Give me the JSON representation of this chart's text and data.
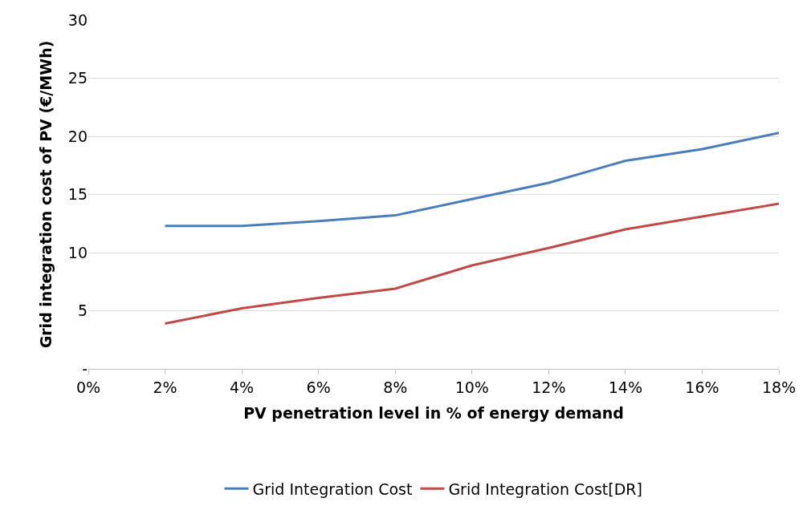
{
  "chart_data": {
    "type": "line",
    "xlabel": "PV penetration level in % of energy demand",
    "ylabel": "Grid integration cost of PV (€/MWh)",
    "x": [
      2,
      4,
      6,
      8,
      10,
      12,
      14,
      16,
      18
    ],
    "series": [
      {
        "name": "Grid Integration Cost",
        "color": "#4a7ebb",
        "values": [
          12.3,
          12.3,
          12.7,
          13.2,
          14.6,
          16.0,
          17.9,
          18.9,
          20.3
        ]
      },
      {
        "name": "Grid Integration Cost[DR]",
        "color": "#be4b48",
        "values": [
          3.9,
          5.2,
          6.1,
          6.9,
          8.9,
          10.4,
          12.0,
          13.1,
          14.2
        ]
      }
    ],
    "xlim": [
      0,
      18
    ],
    "xticks": [
      {
        "value": 0,
        "label": "0%"
      },
      {
        "value": 2,
        "label": "2%"
      },
      {
        "value": 4,
        "label": "4%"
      },
      {
        "value": 6,
        "label": "6%"
      },
      {
        "value": 8,
        "label": "8%"
      },
      {
        "value": 10,
        "label": "10%"
      },
      {
        "value": 12,
        "label": "12%"
      },
      {
        "value": 14,
        "label": "14%"
      },
      {
        "value": 16,
        "label": "16%"
      },
      {
        "value": 18,
        "label": "18%"
      }
    ],
    "ylim": [
      0,
      30
    ],
    "yticks": [
      {
        "value": 0,
        "label": "-"
      },
      5,
      10,
      15,
      20,
      25,
      30
    ],
    "grid": "y",
    "legend": "bottom",
    "marker": "none",
    "line_style": "solid"
  }
}
